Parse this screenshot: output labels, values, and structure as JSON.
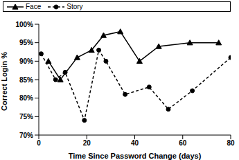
{
  "chart_data": {
    "type": "line",
    "x_label": "Time Since Password Change (days)",
    "y_label": "Correct Login %",
    "xlim": [
      0,
      80
    ],
    "xticks": [
      0,
      20,
      40,
      60,
      80
    ],
    "ylim": [
      70,
      100
    ],
    "yticks": [
      {
        "value": 70,
        "label": "70%"
      },
      {
        "value": 75,
        "label": "75%"
      },
      {
        "value": 80,
        "label": "80%"
      },
      {
        "value": 85,
        "label": "85%"
      },
      {
        "value": 90,
        "label": "90%"
      },
      {
        "value": 95,
        "label": "95%"
      },
      {
        "value": 100,
        "label": "100%"
      }
    ],
    "legend": "upper right",
    "series": [
      {
        "name": "Face",
        "color": "#000000",
        "marker": "triangle",
        "line_style": "solid",
        "x": [
          4,
          9,
          16,
          22,
          27,
          34,
          42,
          50,
          63,
          75
        ],
        "values": [
          90,
          85,
          91,
          93,
          97,
          98,
          90,
          94,
          95,
          95
        ]
      },
      {
        "name": "Story",
        "color": "#000000",
        "marker": "circle",
        "line_style": "dashed",
        "x": [
          1,
          7,
          11,
          19,
          25,
          28,
          36,
          46,
          54,
          64,
          80
        ],
        "values": [
          92,
          85,
          87,
          74,
          93,
          90,
          81,
          83,
          77,
          82,
          91
        ]
      }
    ]
  }
}
